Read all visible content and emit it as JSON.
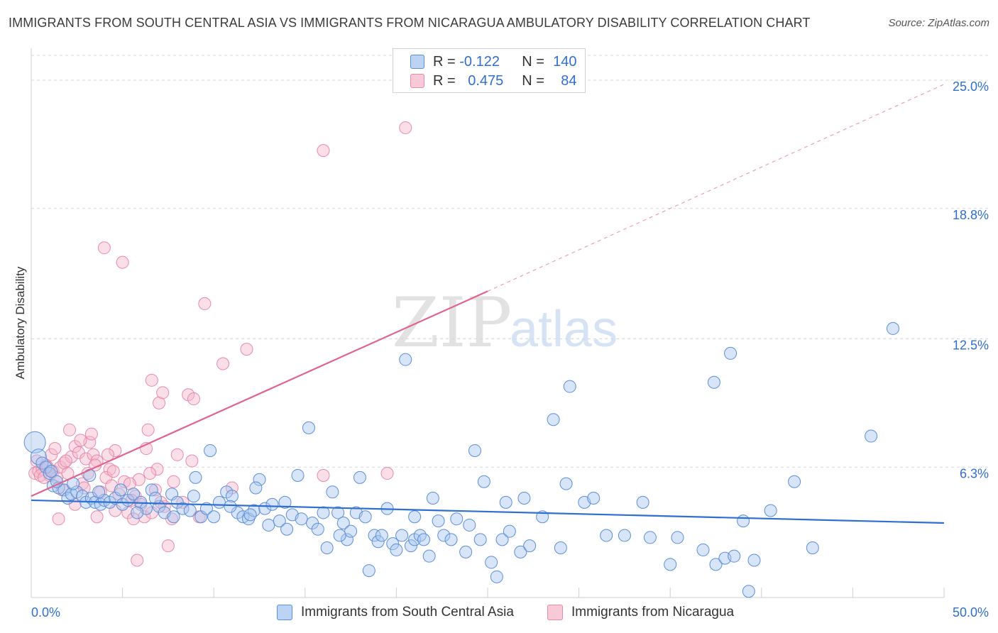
{
  "title": "IMMIGRANTS FROM SOUTH CENTRAL ASIA VS IMMIGRANTS FROM NICARAGUA AMBULATORY DISABILITY CORRELATION CHART",
  "source": "Source: ZipAtlas.com",
  "watermark": {
    "zip": "ZIP",
    "atlas": "atlas"
  },
  "legend": {
    "rows": [
      {
        "r_label": "R =",
        "r_value": "-0.122",
        "n_label": "N =",
        "n_value": "140"
      },
      {
        "r_label": "R =",
        "r_value": "0.475",
        "n_label": "N =",
        "n_value": "84"
      }
    ]
  },
  "colors": {
    "blue_fill": "#a9c6ef",
    "blue_stroke": "#5b8fd8",
    "blue_line": "#2f6fd0",
    "pink_fill": "#f5b8cb",
    "pink_stroke": "#e88aa8",
    "pink_line": "#e0648e",
    "axis_text": "#2f6fd0",
    "grid": "#d9d9d9"
  },
  "chart_data": {
    "type": "scatter",
    "title": "IMMIGRANTS FROM SOUTH CENTRAL ASIA VS IMMIGRANTS FROM NICARAGUA AMBULATORY DISABILITY CORRELATION CHART",
    "xlabel": "",
    "ylabel": "Ambulatory Disability",
    "xlim": [
      0,
      50
    ],
    "ylim": [
      0,
      26.2
    ],
    "x_tick_labels": [
      "0.0%",
      "50.0%"
    ],
    "y_ticks": [
      6.3,
      12.5,
      18.8,
      25.0
    ],
    "y_tick_labels": [
      "6.3%",
      "12.5%",
      "18.8%",
      "25.0%"
    ],
    "grid": true,
    "legend_position": "bottom",
    "series": [
      {
        "name": "Immigrants from South Central Asia",
        "color": "#5b8fd8",
        "trend": {
          "x": [
            0,
            50
          ],
          "y": [
            4.7,
            3.6
          ]
        },
        "points": [
          [
            0.2,
            7.5
          ],
          [
            0.4,
            6.8
          ],
          [
            0.6,
            6.5
          ],
          [
            0.8,
            6.3
          ],
          [
            1.0,
            6.0
          ],
          [
            1.2,
            5.4
          ],
          [
            1.5,
            5.3
          ],
          [
            1.8,
            5.2
          ],
          [
            2.0,
            4.8
          ],
          [
            2.2,
            5.0
          ],
          [
            2.5,
            5.1
          ],
          [
            2.8,
            4.9
          ],
          [
            3.0,
            4.6
          ],
          [
            3.3,
            4.8
          ],
          [
            3.5,
            4.6
          ],
          [
            3.8,
            4.5
          ],
          [
            4.0,
            4.7
          ],
          [
            4.3,
            4.6
          ],
          [
            4.6,
            4.8
          ],
          [
            5.0,
            4.5
          ],
          [
            5.3,
            4.7
          ],
          [
            5.6,
            5.0
          ],
          [
            6.0,
            4.6
          ],
          [
            6.3,
            4.3
          ],
          [
            6.6,
            5.2
          ],
          [
            7.0,
            4.4
          ],
          [
            7.3,
            4.1
          ],
          [
            7.7,
            5.0
          ],
          [
            8.0,
            4.6
          ],
          [
            8.3,
            4.3
          ],
          [
            8.7,
            4.2
          ],
          [
            9.0,
            5.8
          ],
          [
            9.3,
            3.9
          ],
          [
            9.6,
            4.3
          ],
          [
            9.8,
            7.1
          ],
          [
            10.0,
            3.9
          ],
          [
            10.3,
            4.6
          ],
          [
            10.7,
            5.1
          ],
          [
            11.0,
            4.9
          ],
          [
            11.3,
            4.1
          ],
          [
            11.6,
            3.9
          ],
          [
            11.9,
            3.8
          ],
          [
            12.2,
            4.2
          ],
          [
            12.5,
            5.7
          ],
          [
            12.8,
            4.3
          ],
          [
            13.0,
            3.5
          ],
          [
            13.2,
            4.5
          ],
          [
            13.6,
            3.7
          ],
          [
            14.0,
            3.3
          ],
          [
            14.3,
            4.0
          ],
          [
            14.6,
            5.9
          ],
          [
            14.8,
            3.8
          ],
          [
            15.2,
            8.2
          ],
          [
            15.4,
            3.6
          ],
          [
            15.7,
            3.3
          ],
          [
            16.0,
            4.1
          ],
          [
            16.2,
            2.4
          ],
          [
            16.5,
            5.1
          ],
          [
            16.8,
            4.1
          ],
          [
            17.1,
            3.6
          ],
          [
            17.3,
            2.8
          ],
          [
            17.5,
            3.2
          ],
          [
            17.8,
            4.1
          ],
          [
            18.0,
            5.8
          ],
          [
            18.3,
            3.9
          ],
          [
            18.5,
            1.3
          ],
          [
            18.8,
            3.0
          ],
          [
            19.0,
            2.7
          ],
          [
            19.2,
            3.0
          ],
          [
            19.5,
            4.3
          ],
          [
            19.8,
            2.6
          ],
          [
            20.0,
            2.3
          ],
          [
            20.3,
            3.0
          ],
          [
            20.5,
            11.5
          ],
          [
            20.8,
            2.5
          ],
          [
            21.0,
            2.8
          ],
          [
            21.3,
            3.0
          ],
          [
            21.5,
            2.8
          ],
          [
            21.8,
            2.0
          ],
          [
            22.0,
            4.8
          ],
          [
            22.3,
            3.7
          ],
          [
            22.6,
            3.0
          ],
          [
            23.0,
            2.8
          ],
          [
            23.3,
            3.8
          ],
          [
            23.8,
            2.2
          ],
          [
            24.0,
            3.5
          ],
          [
            24.3,
            7.1
          ],
          [
            24.6,
            2.8
          ],
          [
            24.8,
            5.6
          ],
          [
            25.2,
            1.7
          ],
          [
            25.5,
            1.0
          ],
          [
            25.8,
            2.8
          ],
          [
            26.0,
            4.6
          ],
          [
            26.2,
            3.2
          ],
          [
            26.8,
            2.2
          ],
          [
            27.0,
            4.8
          ],
          [
            27.3,
            2.5
          ],
          [
            28.0,
            3.9
          ],
          [
            28.6,
            8.6
          ],
          [
            29.0,
            2.4
          ],
          [
            29.3,
            5.5
          ],
          [
            29.5,
            10.2
          ],
          [
            30.3,
            4.6
          ],
          [
            30.8,
            4.8
          ],
          [
            31.5,
            3.0
          ],
          [
            32.5,
            3.0
          ],
          [
            33.5,
            4.6
          ],
          [
            33.9,
            2.9
          ],
          [
            35.0,
            1.6
          ],
          [
            35.4,
            2.9
          ],
          [
            36.8,
            2.3
          ],
          [
            37.4,
            10.4
          ],
          [
            37.5,
            1.6
          ],
          [
            38.0,
            1.9
          ],
          [
            38.3,
            11.8
          ],
          [
            38.5,
            2.0
          ],
          [
            39.0,
            3.7
          ],
          [
            39.3,
            0.3
          ],
          [
            39.6,
            1.8
          ],
          [
            40.5,
            4.2
          ],
          [
            41.8,
            5.6
          ],
          [
            42.8,
            2.4
          ],
          [
            46.0,
            7.8
          ],
          [
            47.2,
            13.0
          ],
          [
            12.3,
            5.3
          ],
          [
            7.8,
            3.9
          ],
          [
            3.2,
            5.9
          ],
          [
            5.8,
            4.1
          ],
          [
            8.9,
            4.9
          ],
          [
            13.9,
            4.6
          ],
          [
            1.1,
            6.1
          ],
          [
            1.4,
            5.6
          ],
          [
            2.3,
            5.5
          ],
          [
            3.7,
            5.1
          ],
          [
            4.9,
            5.2
          ],
          [
            6.8,
            4.8
          ],
          [
            10.9,
            4.4
          ],
          [
            12.0,
            4.0
          ],
          [
            16.9,
            3.0
          ],
          [
            21.0,
            3.9
          ]
        ]
      },
      {
        "name": "Immigrants from Nicaragua",
        "color": "#e88aa8",
        "trend": {
          "x": [
            0,
            25
          ],
          "y": [
            4.9,
            14.8
          ]
        },
        "trend_dashed": {
          "x": [
            25,
            50
          ],
          "y": [
            14.8,
            24.8
          ]
        },
        "points": [
          [
            0.2,
            6.0
          ],
          [
            0.4,
            6.1
          ],
          [
            0.6,
            6.2
          ],
          [
            0.8,
            6.4
          ],
          [
            1.0,
            5.9
          ],
          [
            1.2,
            6.1
          ],
          [
            1.4,
            5.8
          ],
          [
            1.6,
            6.3
          ],
          [
            1.8,
            6.5
          ],
          [
            2.0,
            6.0
          ],
          [
            2.2,
            6.8
          ],
          [
            2.4,
            7.3
          ],
          [
            2.6,
            7.0
          ],
          [
            2.8,
            5.5
          ],
          [
            3.0,
            6.7
          ],
          [
            3.2,
            7.5
          ],
          [
            3.4,
            6.9
          ],
          [
            3.6,
            6.6
          ],
          [
            3.8,
            5.1
          ],
          [
            4.0,
            16.9
          ],
          [
            4.3,
            6.2
          ],
          [
            4.6,
            7.1
          ],
          [
            4.8,
            5.0
          ],
          [
            5.0,
            16.2
          ],
          [
            5.3,
            4.1
          ],
          [
            5.6,
            3.8
          ],
          [
            5.9,
            5.7
          ],
          [
            6.2,
            3.9
          ],
          [
            6.4,
            8.1
          ],
          [
            6.6,
            10.5
          ],
          [
            7.0,
            9.4
          ],
          [
            7.2,
            9.9
          ],
          [
            7.5,
            2.5
          ],
          [
            8.0,
            6.9
          ],
          [
            8.3,
            4.6
          ],
          [
            8.6,
            9.8
          ],
          [
            8.9,
            9.6
          ],
          [
            9.2,
            3.9
          ],
          [
            9.5,
            14.2
          ],
          [
            10.5,
            11.3
          ],
          [
            11.0,
            5.3
          ],
          [
            11.8,
            12.0
          ],
          [
            16.0,
            21.6
          ],
          [
            16.0,
            5.9
          ],
          [
            19.5,
            6.0
          ],
          [
            20.5,
            22.7
          ],
          [
            0.3,
            6.6
          ],
          [
            0.5,
            5.9
          ],
          [
            1.1,
            6.9
          ],
          [
            1.7,
            5.2
          ],
          [
            2.1,
            8.1
          ],
          [
            2.7,
            7.6
          ],
          [
            3.1,
            6.0
          ],
          [
            3.5,
            6.4
          ],
          [
            4.1,
            5.8
          ],
          [
            4.5,
            6.1
          ],
          [
            5.1,
            5.6
          ],
          [
            5.7,
            4.9
          ],
          [
            6.0,
            4.5
          ],
          [
            6.3,
            7.2
          ],
          [
            6.9,
            6.2
          ],
          [
            7.3,
            4.4
          ],
          [
            7.8,
            5.6
          ],
          [
            8.8,
            6.6
          ],
          [
            1.5,
            3.8
          ],
          [
            2.4,
            4.5
          ],
          [
            3.6,
            3.9
          ],
          [
            4.6,
            4.2
          ],
          [
            5.8,
            1.8
          ],
          [
            6.6,
            4.1
          ],
          [
            7.7,
            3.8
          ],
          [
            0.9,
            6.3
          ],
          [
            1.3,
            7.2
          ],
          [
            2.9,
            5.3
          ],
          [
            4.2,
            6.9
          ],
          [
            5.4,
            5.5
          ],
          [
            6.8,
            5.2
          ],
          [
            0.7,
            5.8
          ],
          [
            1.9,
            6.6
          ],
          [
            3.3,
            7.9
          ],
          [
            4.4,
            5.4
          ],
          [
            5.5,
            4.7
          ],
          [
            6.5,
            6.0
          ],
          [
            7.1,
            4.6
          ]
        ]
      }
    ]
  },
  "bottom_legend": {
    "items": [
      "Immigrants from South Central Asia",
      "Immigrants from Nicaragua"
    ]
  }
}
